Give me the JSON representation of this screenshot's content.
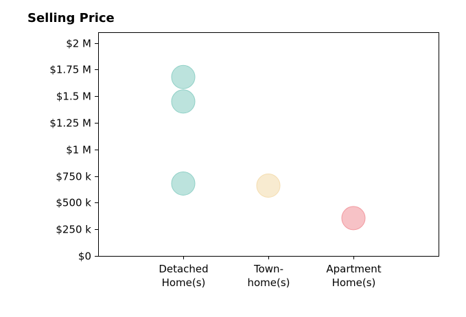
{
  "chart_data": {
    "type": "scatter",
    "title": "Selling Price",
    "xlabel": "",
    "ylabel": "",
    "categories": [
      "Detached\nHome(s)",
      "Town-\nhome(s)",
      "Apartment\nHome(s)"
    ],
    "ylim": [
      0,
      2100000
    ],
    "yticks": [
      {
        "value": 0,
        "label": "$0"
      },
      {
        "value": 250000,
        "label": "$250 k"
      },
      {
        "value": 500000,
        "label": "$500 k"
      },
      {
        "value": 750000,
        "label": "$750 k"
      },
      {
        "value": 1000000,
        "label": "$1 M"
      },
      {
        "value": 1250000,
        "label": "$1.25 M"
      },
      {
        "value": 1500000,
        "label": "$1.5 M"
      },
      {
        "value": 1750000,
        "label": "$1.75 M"
      },
      {
        "value": 2000000,
        "label": "$2 M"
      }
    ],
    "points": [
      {
        "category": "Detached\nHome(s)",
        "value": 1680000,
        "color": "#8fd0c6"
      },
      {
        "category": "Detached\nHome(s)",
        "value": 1450000,
        "color": "#8fd0c6"
      },
      {
        "category": "Detached\nHome(s)",
        "value": 680000,
        "color": "#8fd0c6"
      },
      {
        "category": "Town-\nhome(s)",
        "value": 660000,
        "color": "#f4ddb0"
      },
      {
        "category": "Apartment\nHome(s)",
        "value": 355000,
        "color": "#f29aa0"
      }
    ],
    "grid": false,
    "legend": "none"
  }
}
